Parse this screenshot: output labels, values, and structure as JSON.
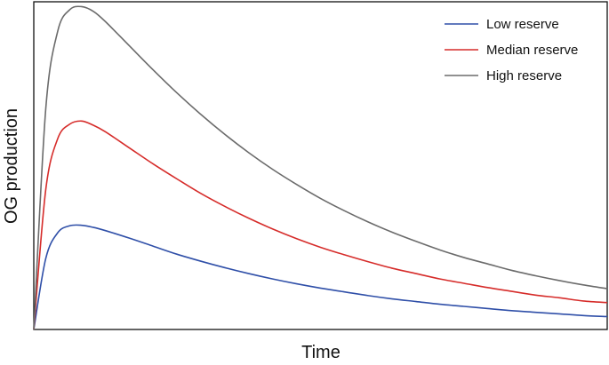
{
  "chart_data": {
    "type": "line",
    "title": "",
    "xlabel": "Time",
    "ylabel": "OG production",
    "xlim": [
      0,
      12
    ],
    "ylim": [
      0,
      6.1
    ],
    "grid": false,
    "legend_position": "top-right",
    "x": [
      0,
      0.25,
      0.5,
      0.75,
      1.0,
      1.25,
      1.5,
      2,
      2.5,
      3,
      3.5,
      4,
      4.5,
      5,
      5.5,
      6,
      6.5,
      7,
      7.5,
      8,
      8.5,
      9,
      9.5,
      10,
      10.5,
      11,
      11.5,
      12
    ],
    "series": [
      {
        "name": "Low reserve",
        "color": "#2f4fa8",
        "values": [
          0,
          1.32,
          1.8,
          1.93,
          1.94,
          1.9,
          1.84,
          1.7,
          1.55,
          1.4,
          1.27,
          1.15,
          1.04,
          0.94,
          0.85,
          0.77,
          0.7,
          0.63,
          0.57,
          0.52,
          0.47,
          0.43,
          0.39,
          0.35,
          0.32,
          0.29,
          0.26,
          0.24
        ]
      },
      {
        "name": "Median reserve",
        "color": "#d62c2a",
        "values": [
          0,
          2.6,
          3.55,
          3.82,
          3.88,
          3.8,
          3.68,
          3.38,
          3.08,
          2.8,
          2.53,
          2.29,
          2.07,
          1.87,
          1.69,
          1.53,
          1.39,
          1.26,
          1.14,
          1.04,
          0.94,
          0.86,
          0.78,
          0.71,
          0.64,
          0.59,
          0.53,
          0.5
        ]
      },
      {
        "name": "High reserve",
        "color": "#6b6b6b",
        "values": [
          0,
          4.1,
          5.55,
          5.95,
          6.01,
          5.92,
          5.73,
          5.28,
          4.83,
          4.4,
          4.0,
          3.63,
          3.29,
          2.98,
          2.7,
          2.44,
          2.21,
          2.0,
          1.81,
          1.64,
          1.48,
          1.34,
          1.22,
          1.1,
          1.0,
          0.91,
          0.83,
          0.76
        ]
      }
    ]
  }
}
